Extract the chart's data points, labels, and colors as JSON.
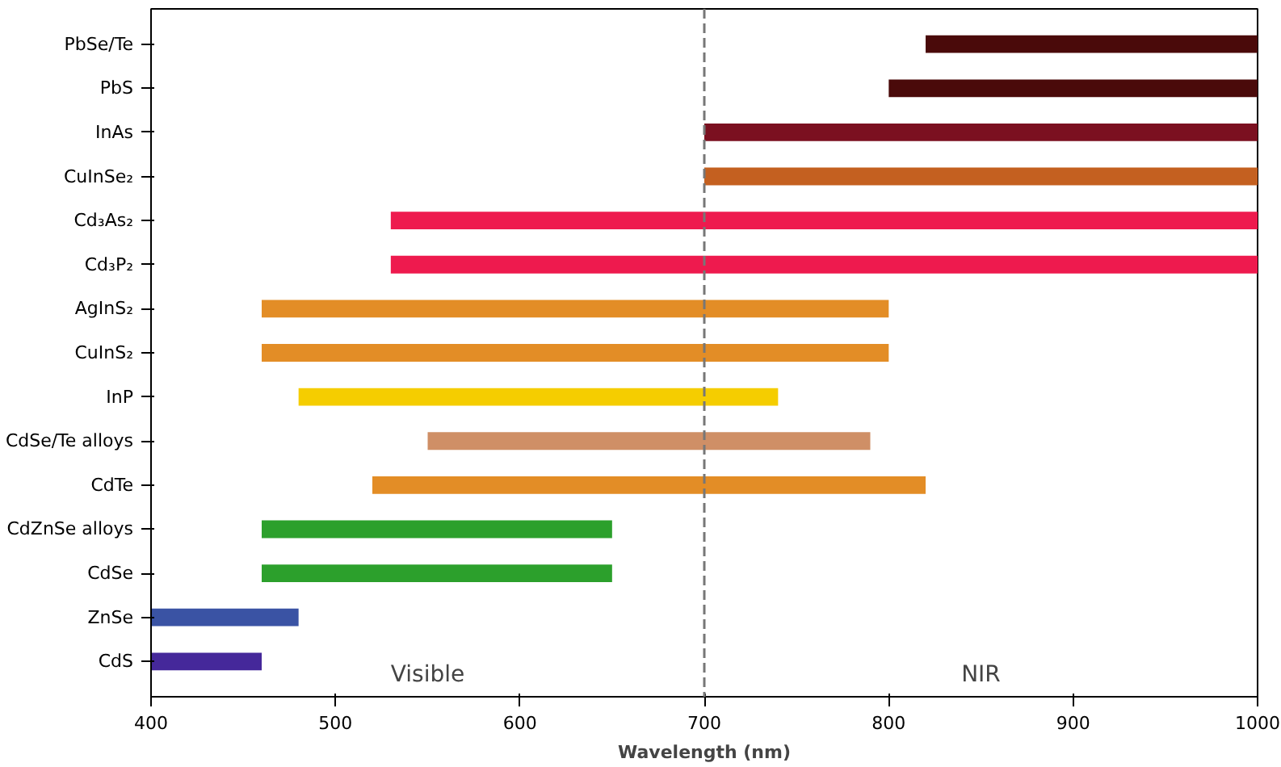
{
  "chart_data": {
    "type": "bar",
    "orientation": "horizontal",
    "xlabel": "Wavelength (nm)",
    "categories": [
      "PbSe/Te",
      "PbS",
      "InAs",
      "CuInSe₂",
      "Cd₃As₂",
      "Cd₃P₂",
      "AgInS₂",
      "CuInS₂",
      "InP",
      "CdSe/Te alloys",
      "CdTe",
      "CdZnSe alloys",
      "CdSe",
      "ZnSe",
      "CdS"
    ],
    "base": [
      820,
      800,
      700,
      700,
      530,
      530,
      460,
      460,
      480,
      550,
      520,
      460,
      460,
      400,
      400
    ],
    "values": [
      180,
      200,
      300,
      300,
      470,
      470,
      340,
      340,
      260,
      240,
      300,
      190,
      190,
      80,
      60
    ],
    "colors": [
      "#4a0a0a",
      "#4a0a0a",
      "#7b1020",
      "#c46020",
      "#ee1a4e",
      "#ee1a4e",
      "#e38d26",
      "#e38d26",
      "#f5cd00",
      "#cf8f66",
      "#e38d26",
      "#2ca02c",
      "#2ca02c",
      "#3a53a4",
      "#45289a"
    ],
    "xlim": [
      400,
      1000
    ],
    "xticks": [
      400,
      500,
      600,
      700,
      800,
      900,
      1000
    ],
    "ref_lines": [
      {
        "axis": "x",
        "value": 700,
        "color": "#777777",
        "line_style": "dashed"
      }
    ],
    "annotations": [
      "Visible",
      "NIR"
    ]
  }
}
